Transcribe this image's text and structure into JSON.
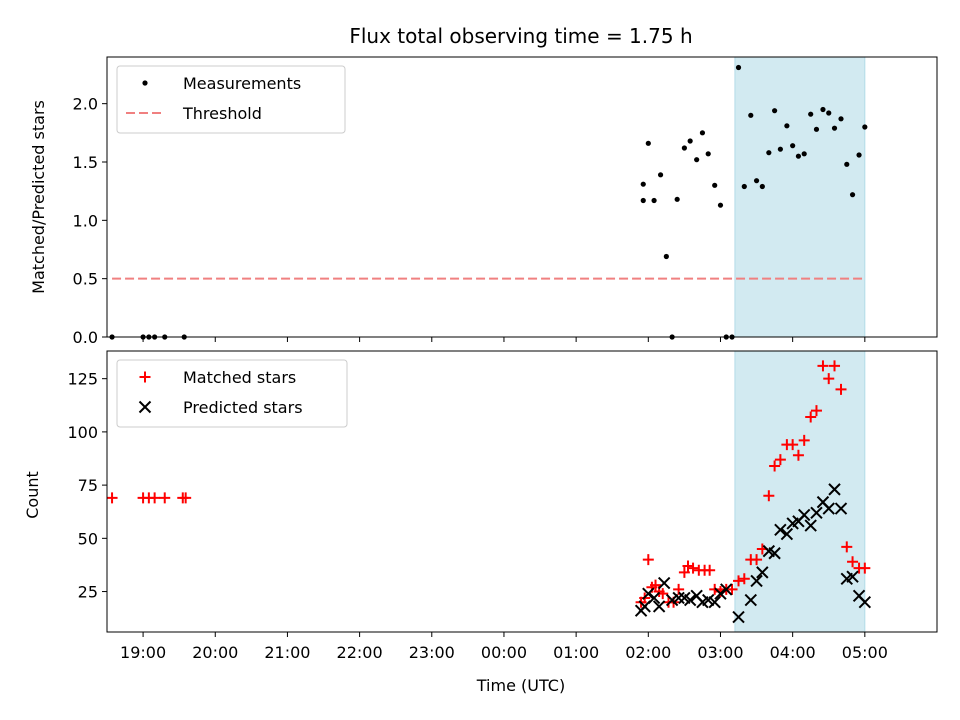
{
  "chart_data": [
    {
      "type": "scatter",
      "title": "Flux total observing time = 1.75 h",
      "ylabel": "Matched/Predicted stars",
      "xlabel": "",
      "xlim": [
        -0.5,
        11
      ],
      "ylim": [
        0,
        2.4
      ],
      "yticks": [
        0.0,
        0.5,
        1.0,
        1.5,
        2.0
      ],
      "ytick_labels": [
        "0.0",
        "0.5",
        "1.0",
        "1.5",
        "2.0"
      ],
      "legend_position": "upper left",
      "shaded_span": [
        8.2,
        10.0
      ],
      "shaded_color": "#add8e6",
      "series": [
        {
          "name": "Measurements",
          "marker": "dot",
          "color": "#000000",
          "points": [
            [
              -0.43,
              0
            ],
            [
              0.0,
              0
            ],
            [
              0.08,
              0
            ],
            [
              0.16,
              0
            ],
            [
              0.3,
              0
            ],
            [
              0.57,
              0
            ],
            [
              6.93,
              1.31
            ],
            [
              6.93,
              1.17
            ],
            [
              7.0,
              1.66
            ],
            [
              7.08,
              1.17
            ],
            [
              7.17,
              1.39
            ],
            [
              7.25,
              0.69
            ],
            [
              7.33,
              0
            ],
            [
              7.4,
              1.18
            ],
            [
              7.5,
              1.62
            ],
            [
              7.58,
              1.68
            ],
            [
              7.67,
              1.52
            ],
            [
              7.75,
              1.75
            ],
            [
              7.83,
              1.57
            ],
            [
              7.92,
              1.3
            ],
            [
              8.0,
              1.13
            ],
            [
              8.08,
              0
            ],
            [
              8.16,
              0
            ],
            [
              8.25,
              2.31
            ],
            [
              8.33,
              1.29
            ],
            [
              8.42,
              1.9
            ],
            [
              8.5,
              1.34
            ],
            [
              8.58,
              1.29
            ],
            [
              8.67,
              1.58
            ],
            [
              8.75,
              1.94
            ],
            [
              8.83,
              1.61
            ],
            [
              8.92,
              1.81
            ],
            [
              9.0,
              1.64
            ],
            [
              9.08,
              1.55
            ],
            [
              9.16,
              1.57
            ],
            [
              9.25,
              1.91
            ],
            [
              9.33,
              1.78
            ],
            [
              9.42,
              1.95
            ],
            [
              9.5,
              1.92
            ],
            [
              9.58,
              1.79
            ],
            [
              9.67,
              1.87
            ],
            [
              9.75,
              1.48
            ],
            [
              9.83,
              1.22
            ],
            [
              9.92,
              1.56
            ],
            [
              10.0,
              1.8
            ]
          ]
        },
        {
          "name": "Threshold",
          "marker": "dashed-line",
          "color": "#f08080",
          "points": [
            [
              -0.43,
              0.5
            ],
            [
              10.0,
              0.5
            ]
          ]
        }
      ]
    },
    {
      "type": "scatter",
      "title": "",
      "ylabel": "Count",
      "xlabel": "Time (UTC)",
      "xlim": [
        -0.5,
        11
      ],
      "ylim": [
        6,
        138
      ],
      "yticks": [
        25,
        50,
        75,
        100,
        125
      ],
      "ytick_labels": [
        "25",
        "50",
        "75",
        "100",
        "125"
      ],
      "xticks": [
        0,
        1,
        2,
        3,
        4,
        5,
        6,
        7,
        8,
        9,
        10
      ],
      "xtick_labels": [
        "19:00",
        "20:00",
        "21:00",
        "22:00",
        "23:00",
        "00:00",
        "01:00",
        "02:00",
        "03:00",
        "04:00",
        "05:00"
      ],
      "legend_position": "upper left",
      "shaded_span": [
        8.2,
        10.0
      ],
      "shaded_color": "#add8e6",
      "series": [
        {
          "name": "Matched stars",
          "marker": "plus",
          "color": "#ff0000",
          "points": [
            [
              -0.43,
              69
            ],
            [
              0.0,
              69
            ],
            [
              0.08,
              69
            ],
            [
              0.16,
              69
            ],
            [
              0.3,
              69
            ],
            [
              0.55,
              69
            ],
            [
              0.59,
              69
            ],
            [
              6.9,
              20
            ],
            [
              6.95,
              22
            ],
            [
              7.0,
              40
            ],
            [
              7.05,
              27
            ],
            [
              7.1,
              28
            ],
            [
              7.15,
              25
            ],
            [
              7.2,
              24
            ],
            [
              7.28,
              20
            ],
            [
              7.35,
              20
            ],
            [
              7.42,
              26
            ],
            [
              7.5,
              34
            ],
            [
              7.55,
              37
            ],
            [
              7.62,
              36
            ],
            [
              7.7,
              35
            ],
            [
              7.78,
              35
            ],
            [
              7.85,
              35
            ],
            [
              7.92,
              26
            ],
            [
              8.0,
              25
            ],
            [
              8.08,
              26
            ],
            [
              8.16,
              26
            ],
            [
              8.25,
              30
            ],
            [
              8.33,
              31
            ],
            [
              8.42,
              40
            ],
            [
              8.5,
              40
            ],
            [
              8.58,
              45
            ],
            [
              8.67,
              70
            ],
            [
              8.75,
              84
            ],
            [
              8.83,
              87
            ],
            [
              8.92,
              94
            ],
            [
              9.0,
              94
            ],
            [
              9.08,
              89
            ],
            [
              9.16,
              96
            ],
            [
              9.25,
              107
            ],
            [
              9.33,
              110
            ],
            [
              9.42,
              131
            ],
            [
              9.5,
              125
            ],
            [
              9.58,
              131
            ],
            [
              9.67,
              120
            ],
            [
              9.75,
              46
            ],
            [
              9.83,
              39
            ],
            [
              9.92,
              36
            ],
            [
              10.0,
              36
            ]
          ]
        },
        {
          "name": "Predicted stars",
          "marker": "x",
          "color": "#000000",
          "points": [
            [
              6.9,
              16
            ],
            [
              6.95,
              18
            ],
            [
              7.0,
              24
            ],
            [
              7.08,
              22
            ],
            [
              7.15,
              18
            ],
            [
              7.22,
              29
            ],
            [
              7.33,
              21
            ],
            [
              7.42,
              22
            ],
            [
              7.5,
              22
            ],
            [
              7.58,
              21
            ],
            [
              7.67,
              23
            ],
            [
              7.75,
              20
            ],
            [
              7.83,
              21
            ],
            [
              7.92,
              20
            ],
            [
              8.0,
              24
            ],
            [
              8.08,
              26
            ],
            [
              8.25,
              13
            ],
            [
              8.42,
              21
            ],
            [
              8.5,
              30
            ],
            [
              8.58,
              34
            ],
            [
              8.67,
              44
            ],
            [
              8.75,
              43
            ],
            [
              8.83,
              54
            ],
            [
              8.92,
              52
            ],
            [
              9.0,
              57
            ],
            [
              9.08,
              58
            ],
            [
              9.16,
              61
            ],
            [
              9.25,
              56
            ],
            [
              9.33,
              62
            ],
            [
              9.42,
              67
            ],
            [
              9.5,
              64
            ],
            [
              9.58,
              73
            ],
            [
              9.67,
              64
            ],
            [
              9.75,
              31
            ],
            [
              9.83,
              32
            ],
            [
              9.92,
              23
            ],
            [
              10.0,
              20
            ]
          ]
        }
      ]
    }
  ]
}
